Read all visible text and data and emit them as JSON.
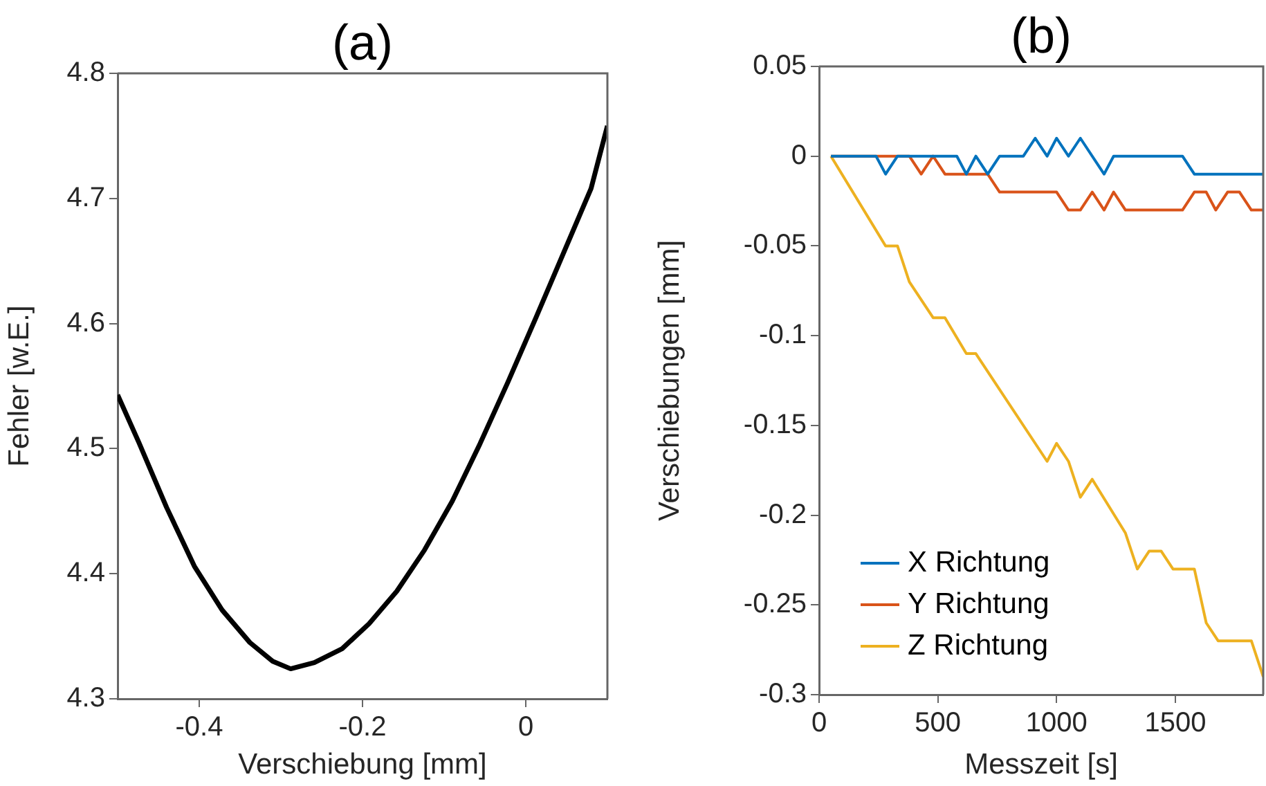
{
  "chart_data": [
    {
      "type": "line",
      "title": "(a)",
      "xlabel": "Verschiebung [mm]",
      "ylabel": "Fehler [w.E.]",
      "color": "#000000",
      "xlim": [
        -0.5,
        0.1
      ],
      "xticks": [
        -0.4,
        -0.2,
        0
      ],
      "ylim": [
        4.3,
        4.8
      ],
      "yticks": [
        4.3,
        4.4,
        4.5,
        4.6,
        4.7,
        4.8
      ],
      "x": [
        -0.5,
        -0.474,
        -0.44,
        -0.406,
        -0.372,
        -0.338,
        -0.31,
        -0.288,
        -0.259,
        -0.225,
        -0.192,
        -0.158,
        -0.124,
        -0.09,
        -0.056,
        -0.022,
        0.012,
        0.046,
        0.08,
        0.1
      ],
      "values": [
        4.543,
        4.505,
        4.453,
        4.406,
        4.371,
        4.345,
        4.33,
        4.324,
        4.329,
        4.34,
        4.36,
        4.386,
        4.419,
        4.458,
        4.504,
        4.553,
        4.604,
        4.656,
        4.708,
        4.758
      ]
    },
    {
      "type": "line",
      "title": "(b)",
      "xlabel": "Messzeit [s]",
      "ylabel": "Verschiebungen [mm]",
      "xlim": [
        0,
        1870
      ],
      "xticks": [
        0,
        500,
        1000,
        1500
      ],
      "ylim": [
        -0.3,
        0.05
      ],
      "yticks": [
        -0.3,
        -0.25,
        -0.2,
        -0.15,
        -0.1,
        -0.05,
        0,
        0.05
      ],
      "legend": "bottom left",
      "series": [
        {
          "name": "X Richtung",
          "color": "#0072bd",
          "x": [
            50,
            240,
            280,
            330,
            580,
            620,
            660,
            710,
            760,
            860,
            910,
            960,
            1000,
            1050,
            1100,
            1200,
            1240,
            1530,
            1580,
            1870
          ],
          "values": [
            0,
            0,
            -0.01,
            0,
            0,
            -0.01,
            0,
            -0.01,
            0,
            0,
            0.01,
            0,
            0.01,
            0,
            0.01,
            -0.01,
            0,
            0,
            -0.01,
            -0.01
          ]
        },
        {
          "name": "Y Richtung",
          "color": "#d95319",
          "x": [
            50,
            380,
            430,
            480,
            530,
            710,
            760,
            1000,
            1050,
            1100,
            1150,
            1200,
            1240,
            1290,
            1530,
            1580,
            1630,
            1670,
            1720,
            1770,
            1820,
            1870
          ],
          "values": [
            0,
            0,
            -0.01,
            0,
            -0.01,
            -0.01,
            -0.02,
            -0.02,
            -0.03,
            -0.03,
            -0.02,
            -0.03,
            -0.02,
            -0.03,
            -0.03,
            -0.02,
            -0.02,
            -0.03,
            -0.02,
            -0.02,
            -0.03,
            -0.03
          ]
        },
        {
          "name": "Z Richtung",
          "color": "#edb120",
          "x": [
            50,
            280,
            330,
            380,
            480,
            530,
            620,
            660,
            960,
            1000,
            1050,
            1100,
            1150,
            1290,
            1340,
            1390,
            1440,
            1490,
            1580,
            1630,
            1680,
            1820,
            1870
          ],
          "values": [
            0,
            -0.05,
            -0.05,
            -0.07,
            -0.09,
            -0.09,
            -0.11,
            -0.11,
            -0.17,
            -0.16,
            -0.17,
            -0.19,
            -0.18,
            -0.21,
            -0.23,
            -0.22,
            -0.22,
            -0.23,
            -0.23,
            -0.26,
            -0.27,
            -0.27,
            -0.29
          ]
        }
      ]
    }
  ]
}
